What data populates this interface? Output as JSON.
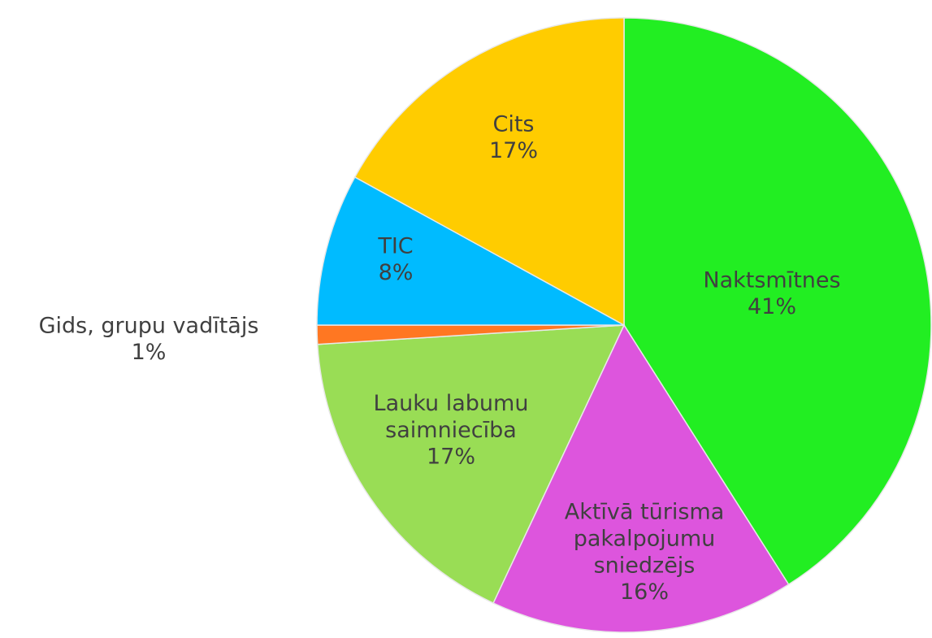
{
  "chart_data": {
    "type": "pie",
    "categories": [
      "Naktsmītnes",
      "Aktīvā tūrisma pakalpojumu sniedzējs",
      "Lauku labumu saimniecība",
      "Gids, grupu vadītājs",
      "TIC",
      "Cits"
    ],
    "values": [
      41,
      16,
      17,
      1,
      8,
      17
    ],
    "value_labels": [
      "41%",
      "16%",
      "17%",
      "1%",
      "8%",
      "17%"
    ],
    "colors": [
      "#22ee22",
      "#dd55dd",
      "#99dd55",
      "#ff7722",
      "#00bbff",
      "#ffcc00"
    ]
  }
}
